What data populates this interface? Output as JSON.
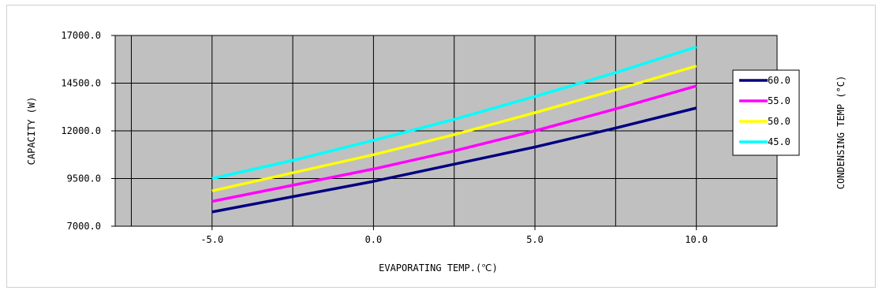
{
  "chart_data": {
    "type": "line",
    "xlabel": "EVAPORATING TEMP.(℃)",
    "ylabel": "CAPACITY (W)",
    "legend_title": "CONDENSING TEMP (°C)",
    "legend_position": "right",
    "grid": true,
    "plot_background": "#c0c0c0",
    "xlim": [
      -8.0,
      12.5
    ],
    "ylim": [
      7000.0,
      17000.0
    ],
    "x_ticks": [
      -5.0,
      0.0,
      5.0,
      10.0
    ],
    "x_tick_labels": [
      "-5.0",
      "0.0",
      "5.0",
      "10.0"
    ],
    "x_gridlines": [
      -7.5,
      -5.0,
      -2.5,
      0.0,
      2.5,
      5.0,
      7.5,
      10.0,
      12.5
    ],
    "y_ticks": [
      7000.0,
      9500.0,
      12000.0,
      14500.0,
      17000.0
    ],
    "y_tick_labels": [
      "7000.0",
      "9500.0",
      "12000.0",
      "14500.0",
      "17000.0"
    ],
    "series": [
      {
        "name": "60.0",
        "color": "#000080",
        "x": [
          -5.0,
          -2.5,
          0.0,
          2.5,
          5.0,
          7.5,
          10.0
        ],
        "values": [
          7750,
          8550,
          9350,
          10250,
          11150,
          12150,
          13200
        ]
      },
      {
        "name": "55.0",
        "color": "#ff00ff",
        "x": [
          -5.0,
          -2.5,
          0.0,
          2.5,
          5.0,
          7.5,
          10.0
        ],
        "values": [
          8300,
          9150,
          10000,
          10950,
          12000,
          13150,
          14350
        ]
      },
      {
        "name": "50.0",
        "color": "#ffff00",
        "x": [
          -5.0,
          -2.5,
          0.0,
          2.5,
          5.0,
          7.5,
          10.0
        ],
        "values": [
          8850,
          9800,
          10750,
          11800,
          12950,
          14150,
          15400
        ]
      },
      {
        "name": "45.0",
        "color": "#00ffff",
        "x": [
          -5.0,
          -2.5,
          0.0,
          2.5,
          5.0,
          7.5,
          10.0
        ],
        "values": [
          9500,
          10450,
          11500,
          12600,
          13800,
          15050,
          16400
        ]
      }
    ]
  }
}
